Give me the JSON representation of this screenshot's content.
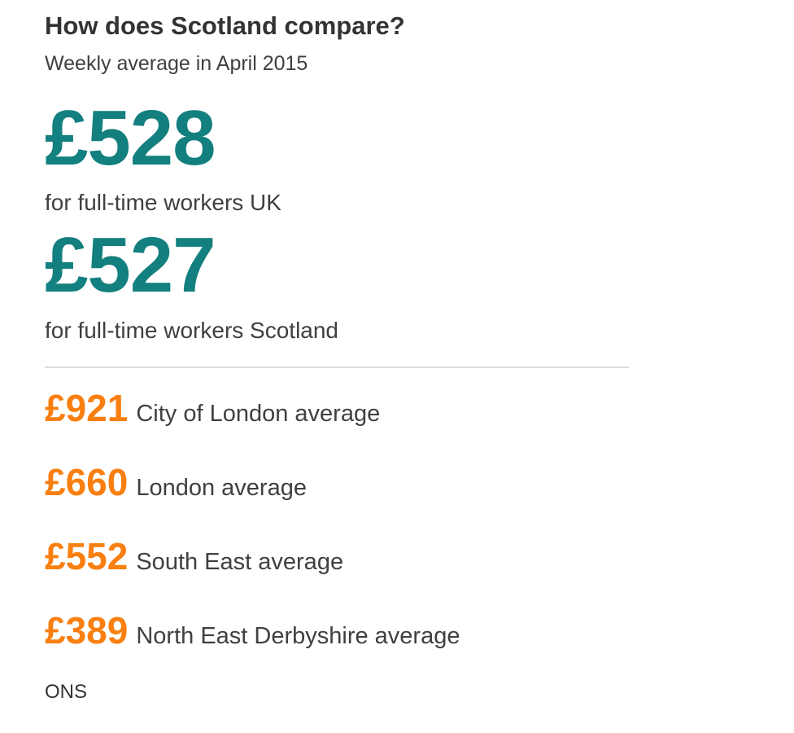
{
  "title": "How does Scotland compare?",
  "subtitle": "Weekly average in April 2015",
  "headline": [
    {
      "value": "£528",
      "label": "for full-time workers UK"
    },
    {
      "value": "£527",
      "label": "for full-time workers Scotland"
    }
  ],
  "regions": [
    {
      "value": "£921",
      "label": "City of London average"
    },
    {
      "value": "£660",
      "label": "London average"
    },
    {
      "value": "£552",
      "label": "South East average"
    },
    {
      "value": "£389",
      "label": "North East Derbyshire average"
    }
  ],
  "source": "ONS",
  "colors": {
    "teal": "#137f7f",
    "orange": "#f97f10"
  }
}
